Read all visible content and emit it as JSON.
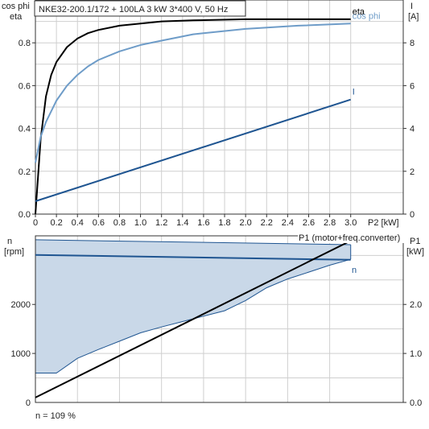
{
  "chart_data": [
    {
      "type": "line",
      "title": "NKE32-200.1/172 + 100LA   3 kW   3*400 V, 50 Hz",
      "left_axis_label_1": "cos phi",
      "left_axis_label_2": "eta",
      "right_axis_label_1": "I",
      "right_axis_label_2": "[A]",
      "x_axis_label": "P2 [kW]",
      "xlim": [
        0,
        3.5
      ],
      "ylim_left": [
        0,
        1.0
      ],
      "ylim_right": [
        0,
        10
      ],
      "x_ticks": [
        "0",
        "0.2",
        "0.4",
        "0.6",
        "0.8",
        "1.0",
        "1.2",
        "1.4",
        "1.6",
        "1.8",
        "2.0",
        "2.2",
        "2.4",
        "2.6",
        "2.8",
        "3.0"
      ],
      "y_ticks_left": [
        "0.0",
        "0.2",
        "0.4",
        "0.6",
        "0.8"
      ],
      "y_ticks_right": [
        "0",
        "2",
        "4",
        "6",
        "8"
      ],
      "grid": true,
      "series": [
        {
          "name": "eta",
          "axis": "left",
          "color": "#000000",
          "x": [
            0.0,
            0.05,
            0.1,
            0.15,
            0.2,
            0.3,
            0.4,
            0.5,
            0.6,
            0.8,
            1.0,
            1.2,
            1.5,
            2.0,
            2.5,
            3.0
          ],
          "y": [
            0.0,
            0.35,
            0.55,
            0.65,
            0.71,
            0.78,
            0.82,
            0.845,
            0.86,
            0.88,
            0.89,
            0.9,
            0.905,
            0.91,
            0.91,
            0.91
          ]
        },
        {
          "name": "cos phi",
          "axis": "left",
          "color": "#6e9cc8",
          "x": [
            0.0,
            0.05,
            0.1,
            0.2,
            0.3,
            0.4,
            0.5,
            0.6,
            0.8,
            1.0,
            1.2,
            1.5,
            2.0,
            2.5,
            3.0
          ],
          "y": [
            0.24,
            0.36,
            0.43,
            0.53,
            0.6,
            0.65,
            0.69,
            0.72,
            0.76,
            0.79,
            0.81,
            0.84,
            0.865,
            0.88,
            0.89
          ]
        },
        {
          "name": "I",
          "axis": "right",
          "color": "#1f5591",
          "x": [
            0.0,
            3.0
          ],
          "y": [
            0.6,
            5.35
          ]
        }
      ]
    },
    {
      "type": "area",
      "left_axis_label_1": "n",
      "left_axis_label_2": "[rpm]",
      "right_axis_label_1": "P1",
      "right_axis_label_2": "[kW]",
      "p1_series_label": "P1 (motor+freq.converter)",
      "xlim": [
        0,
        3.5
      ],
      "ylim_left": [
        0,
        3400
      ],
      "ylim_right": [
        0,
        3.4
      ],
      "y_ticks_left": [
        "1000",
        "2000"
      ],
      "y_ticks_right": [
        "0.0",
        "1.0",
        "2.0"
      ],
      "footnote": "n = 109 %",
      "grid": true,
      "speed_range": {
        "name": "n",
        "color": "#1f5591",
        "fill": "#c9d8e8",
        "upper_x": [
          0.0,
          3.0
        ],
        "upper_y": [
          3320,
          3220
        ],
        "lower_x": [
          0.0,
          0.2,
          0.4,
          0.6,
          0.8,
          1.0,
          1.2,
          1.4,
          1.6,
          1.8,
          2.0,
          2.2,
          2.4,
          2.6,
          2.8,
          3.0
        ],
        "lower_y": [
          600,
          600,
          900,
          1080,
          1250,
          1420,
          1540,
          1650,
          1760,
          1870,
          2080,
          2340,
          2520,
          2660,
          2800,
          2920
        ],
        "line_x": [
          0.0,
          3.0
        ],
        "line_y": [
          3010,
          2910
        ]
      },
      "p1_line": {
        "color": "#000000",
        "x": [
          0.0,
          3.0
        ],
        "y": [
          0.1,
          3.3
        ]
      }
    }
  ]
}
